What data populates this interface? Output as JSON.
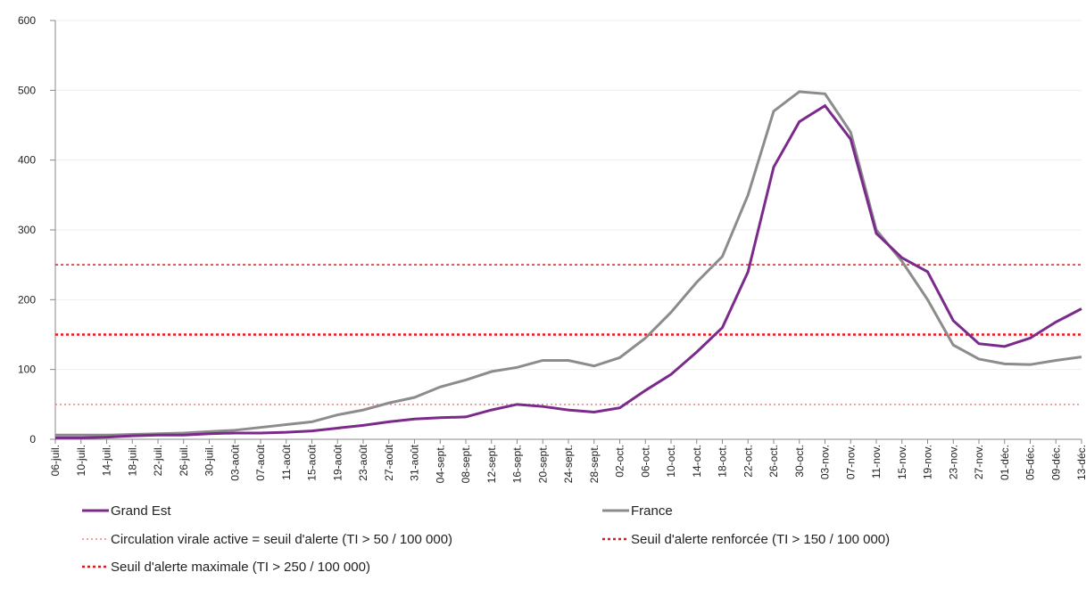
{
  "chart_data": {
    "type": "line",
    "categories": [
      "06-juil.",
      "10-juil.",
      "14-juil.",
      "18-juil.",
      "22-juil.",
      "26-juil.",
      "30-juil.",
      "03-août",
      "07-août",
      "11-août",
      "15-août",
      "19-août",
      "23-août",
      "27-août",
      "31-août",
      "04-sept.",
      "08-sept.",
      "12-sept.",
      "16-sept.",
      "20-sept.",
      "24-sept.",
      "28-sept.",
      "02-oct.",
      "06-oct.",
      "10-oct.",
      "14-oct.",
      "18-oct.",
      "22-oct.",
      "26-oct.",
      "30-oct.",
      "03-nov.",
      "07-nov.",
      "11-nov.",
      "15-nov.",
      "19-nov.",
      "23-nov.",
      "27-nov.",
      "01-déc.",
      "05-déc.",
      "09-déc.",
      "13-déc."
    ],
    "series": [
      {
        "name": "Grand Est",
        "color": "#7b2a8c",
        "values": [
          2,
          2,
          3,
          5,
          6,
          6,
          8,
          9,
          9,
          10,
          12,
          16,
          20,
          25,
          29,
          31,
          32,
          42,
          50,
          47,
          42,
          39,
          45,
          70,
          93,
          125,
          160,
          240,
          390,
          455,
          478,
          430,
          295,
          260,
          240,
          170,
          137,
          133,
          145,
          168,
          187
        ]
      },
      {
        "name": "France",
        "color": "#8c8c8c",
        "values": [
          6,
          6,
          6,
          7,
          8,
          9,
          11,
          13,
          17,
          21,
          25,
          35,
          42,
          52,
          60,
          75,
          85,
          97,
          103,
          113,
          113,
          105,
          117,
          145,
          182,
          225,
          262,
          350,
          470,
          498,
          495,
          440,
          300,
          255,
          200,
          135,
          115,
          108,
          107,
          113,
          118
        ]
      }
    ],
    "thresholds": [
      {
        "name": "Circulation virale active = seuil d'alerte (TI > 50 / 100 000)",
        "value": 50,
        "color": "#f08080"
      },
      {
        "name": "Seuil d'alerte renforcée (TI > 150 / 100 000)",
        "value": 150,
        "color": "#e8141e"
      },
      {
        "name": "Seuil d'alerte maximale (TI > 250 / 100 000)",
        "value": 250,
        "color": "#d42020"
      }
    ],
    "ylim": [
      0,
      600
    ],
    "yticks": [
      0,
      100,
      200,
      300,
      400,
      500,
      600
    ],
    "grid": true
  }
}
